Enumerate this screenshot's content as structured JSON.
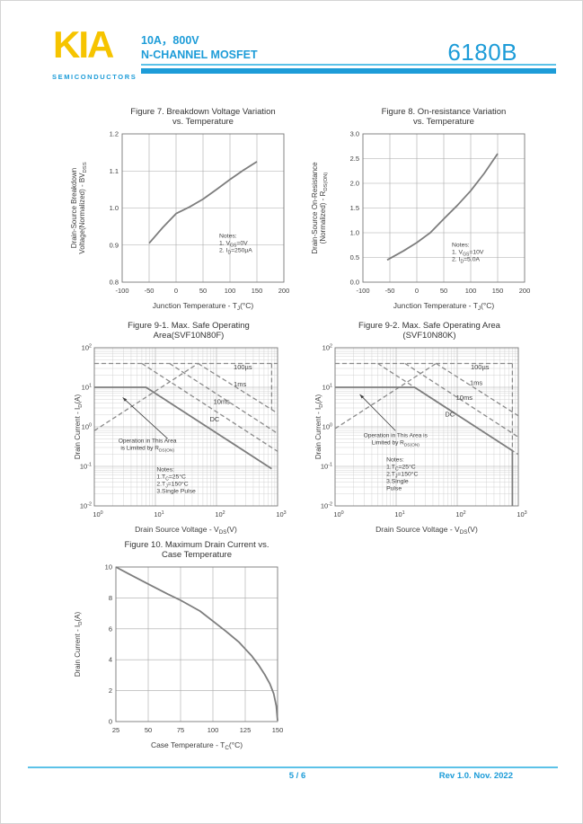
{
  "colors": {
    "accent": "#1d9cd8",
    "accent_light": "#5cc2e8",
    "logo_yellow": "#f6c400",
    "chart_ink": "#3d3d3d",
    "grid_major": "#a8a8a8",
    "grid_minor": "#c9c9c9",
    "curve": "#7d7d7d",
    "frame": "#777777"
  },
  "header": {
    "logo": "KIA",
    "logo_sub": "SEMICONDUCTORS",
    "spec_line1": "10A，800V",
    "spec_line2": "N-CHANNEL MOSFET",
    "part_number": "6180B"
  },
  "footer": {
    "page": "5 / 6",
    "rev": "Rev 1.0. Nov. 2022"
  },
  "chart_data": [
    {
      "id": "figure-7",
      "type": "line",
      "title_lines": [
        "Figure 7. Breakdown Voltage Variation",
        "vs. Temperature"
      ],
      "xlabel": "Junction Temperature  -  T~J~(°C)",
      "ylabel_lines": [
        "Drain-Source Breakdown",
        "Voltage(Normalized)  -  BV~DSS~"
      ],
      "x": {
        "scale": "linear",
        "min": -100,
        "max": 200,
        "ticks": [
          "-100",
          "-50",
          "0",
          "50",
          "100",
          "150",
          "200"
        ]
      },
      "y": {
        "scale": "linear",
        "min": 0.8,
        "max": 1.2,
        "ticks": [
          "0.8",
          "0.9",
          "1.0",
          "1.1",
          "1.2"
        ]
      },
      "grid": "major",
      "series": [
        {
          "name": "normalized breakdown voltage",
          "style": "solid",
          "points": [
            [
              -50,
              0.905
            ],
            [
              -25,
              0.947
            ],
            [
              0,
              0.985
            ],
            [
              25,
              1.003
            ],
            [
              50,
              1.024
            ],
            [
              75,
              1.05
            ],
            [
              100,
              1.077
            ],
            [
              125,
              1.102
            ],
            [
              150,
              1.125
            ]
          ]
        }
      ],
      "notes": {
        "fx": 0.6,
        "fy": 0.7,
        "lines": [
          "Notes:",
          "1. V~GS~=0V",
          "2. I~D~=250µA"
        ]
      }
    },
    {
      "id": "figure-8",
      "type": "line",
      "title_lines": [
        "Figure 8. On-resistance Variation",
        "vs. Temperature"
      ],
      "xlabel": "Junction Temperature  -  T~J~(°C)",
      "ylabel_lines": [
        "Drain-Source On-Resistance",
        "(Normalized)  -  R~DS(ON)~"
      ],
      "x": {
        "scale": "linear",
        "min": -100,
        "max": 200,
        "ticks": [
          "-100",
          "-50",
          "0",
          "50",
          "100",
          "150",
          "200"
        ]
      },
      "y": {
        "scale": "linear",
        "min": 0,
        "max": 3,
        "ticks": [
          "0.0",
          "0.5",
          "1.0",
          "1.5",
          "2.0",
          "2.5",
          "3.0"
        ]
      },
      "grid": "major",
      "series": [
        {
          "name": "normalized on-resistance",
          "style": "solid",
          "points": [
            [
              -55,
              0.45
            ],
            [
              -25,
              0.63
            ],
            [
              0,
              0.8
            ],
            [
              20,
              0.96
            ],
            [
              25,
              1.0
            ],
            [
              50,
              1.28
            ],
            [
              75,
              1.55
            ],
            [
              100,
              1.85
            ],
            [
              125,
              2.2
            ],
            [
              150,
              2.6
            ]
          ]
        }
      ],
      "notes": {
        "fx": 0.55,
        "fy": 0.76,
        "lines": [
          "Notes:",
          "1. V~GS~=10V",
          "2. I~D~=5.0A"
        ]
      }
    },
    {
      "id": "figure-9-1",
      "type": "line",
      "title_lines": [
        "Figure 9-1. Max. Safe Operating",
        "Area(SVF10N80F)"
      ],
      "xlabel": "Drain Source Voltage - V~DS~(V)",
      "ylabel_lines": [
        "Drain Current - I~D~(A)"
      ],
      "x": {
        "scale": "log",
        "min_exp": 0,
        "max_exp": 3,
        "tick_exps": [
          0,
          1,
          2,
          3
        ]
      },
      "y": {
        "scale": "log",
        "min_exp": -2,
        "max_exp": 2,
        "tick_exps": [
          -2,
          -1,
          0,
          1,
          2
        ]
      },
      "grid": "log",
      "series": [
        {
          "name": "pulsed current limit",
          "style": "dash",
          "points": [
            [
              1,
              40
            ],
            [
              1000,
              40
            ]
          ]
        },
        {
          "name": "RDS(ON) limit",
          "style": "dash",
          "points": [
            [
              1,
              0.8
            ],
            [
              50,
              40
            ]
          ]
        },
        {
          "name": "100µs",
          "style": "dash",
          "points": [
            [
              50,
              40
            ],
            [
              1000,
              2.2
            ]
          ]
        },
        {
          "name": "1ms",
          "style": "dash",
          "points": [
            [
              17,
              40
            ],
            [
              1000,
              0.68
            ]
          ]
        },
        {
          "name": "10ms",
          "style": "dash",
          "points": [
            [
              6,
              40
            ],
            [
              1000,
              0.24
            ]
          ]
        },
        {
          "name": "voltage limit 800V",
          "style": "dash",
          "points": [
            [
              800,
              40
            ],
            [
              800,
              2.7
            ]
          ]
        },
        {
          "name": "DC",
          "style": "solid",
          "points": [
            [
              1,
              10
            ],
            [
              7,
              10
            ],
            [
              800,
              0.0875
            ]
          ]
        }
      ],
      "labels": [
        {
          "text": "100µs",
          "fx": 0.76,
          "fy": 0.135
        },
        {
          "text": "1ms",
          "fx": 0.76,
          "fy": 0.245
        },
        {
          "text": "10ms",
          "fx": 0.65,
          "fy": 0.355
        },
        {
          "text": "DC",
          "fx": 0.63,
          "fy": 0.465
        }
      ],
      "annotation": {
        "lines": [
          "Operation in This Area",
          "is Limited by R~DS(ON)~"
        ],
        "fx": 0.29,
        "fy": 0.6,
        "arrow": {
          "fx1": 0.4,
          "fy1": 0.575,
          "fx2": 0.155,
          "fy2": 0.315
        }
      },
      "notes": {
        "fx": 0.34,
        "fy": 0.78,
        "lines": [
          "Notes:",
          "1.T~C~=25°C",
          "2.T~J~=150°C",
          "3.Single Pulse"
        ]
      }
    },
    {
      "id": "figure-9-2",
      "type": "line",
      "title_lines": [
        "Figure 9-2. Max. Safe Operating Area",
        "(SVF10N80K)"
      ],
      "xlabel": "Drain Source Voltage - V~DS~(V)",
      "ylabel_lines": [
        "Drain Current - I~D~(A)"
      ],
      "x": {
        "scale": "log",
        "min_exp": 0,
        "max_exp": 3,
        "tick_exps": [
          0,
          1,
          2,
          3
        ]
      },
      "y": {
        "scale": "log",
        "min_exp": -2,
        "max_exp": 2,
        "tick_exps": [
          -2,
          -1,
          0,
          1,
          2
        ]
      },
      "grid": "log",
      "series": [
        {
          "name": "pulsed current limit",
          "style": "dash",
          "points": [
            [
              1,
              40
            ],
            [
              800,
              40
            ]
          ]
        },
        {
          "name": "RDS(ON) limit",
          "style": "dash",
          "points": [
            [
              1,
              0.9
            ],
            [
              45,
              40
            ]
          ]
        },
        {
          "name": "100µs",
          "style": "dash",
          "points": [
            [
              45,
              40
            ],
            [
              1000,
              1.9
            ]
          ]
        },
        {
          "name": "1ms",
          "style": "dash",
          "points": [
            [
              14,
              40
            ],
            [
              1000,
              0.55
            ]
          ]
        },
        {
          "name": "10ms",
          "style": "dash",
          "points": [
            [
              5,
              40
            ],
            [
              1000,
              0.2
            ]
          ]
        },
        {
          "name": "voltage limit 800V",
          "style": "dash",
          "points": [
            [
              800,
              40
            ],
            [
              800,
              0.25
            ]
          ]
        },
        {
          "name": "DC",
          "style": "solid",
          "points": [
            [
              1,
              10
            ],
            [
              20,
              10
            ],
            [
              800,
              0.25
            ],
            [
              800,
              0.01
            ]
          ]
        }
      ],
      "labels": [
        {
          "text": "100µs",
          "fx": 0.74,
          "fy": 0.135
        },
        {
          "text": "1ms",
          "fx": 0.735,
          "fy": 0.235
        },
        {
          "text": "10ms",
          "fx": 0.66,
          "fy": 0.33
        },
        {
          "text": "DC",
          "fx": 0.6,
          "fy": 0.435
        }
      ],
      "annotation": {
        "lines": [
          "Operation in This Area is",
          "Limited by R~DS(ON)~"
        ],
        "fx": 0.33,
        "fy": 0.565,
        "arrow": {
          "fx1": 0.33,
          "fy1": 0.525,
          "fx2": 0.135,
          "fy2": 0.295
        }
      },
      "notes": {
        "fx": 0.28,
        "fy": 0.72,
        "lines": [
          "Notes:",
          "1.T~C~=25°C",
          "2.T~J~=150°C",
          "3.Single",
          "Pulse"
        ]
      }
    },
    {
      "id": "figure-10",
      "type": "line",
      "title_lines": [
        "Figure 10. Maximum Drain Current vs.",
        "Case Temperature"
      ],
      "xlabel": "Case Temperature  -  T~C~(°C)",
      "ylabel_lines": [
        "Drain Current - I~D~(A)"
      ],
      "x": {
        "scale": "linear",
        "min": 25,
        "max": 150,
        "ticks": [
          "25",
          "50",
          "75",
          "100",
          "125",
          "150"
        ]
      },
      "y": {
        "scale": "linear",
        "min": 0,
        "max": 10,
        "ticks": [
          "0",
          "2",
          "4",
          "6",
          "8",
          "10"
        ]
      },
      "grid": "major",
      "series": [
        {
          "name": "maximum drain current",
          "style": "solid",
          "points": [
            [
              25,
              10
            ],
            [
              35,
              9.55
            ],
            [
              50,
              8.9
            ],
            [
              65,
              8.25
            ],
            [
              75,
              7.85
            ],
            [
              90,
              7.15
            ],
            [
              100,
              6.5
            ],
            [
              110,
              5.85
            ],
            [
              120,
              5.15
            ],
            [
              125,
              4.7
            ],
            [
              130,
              4.25
            ],
            [
              135,
              3.7
            ],
            [
              140,
              3.05
            ],
            [
              144,
              2.45
            ],
            [
              147,
              1.8
            ],
            [
              149,
              1.0
            ],
            [
              150,
              0.05
            ]
          ]
        }
      ],
      "notes": null
    }
  ]
}
